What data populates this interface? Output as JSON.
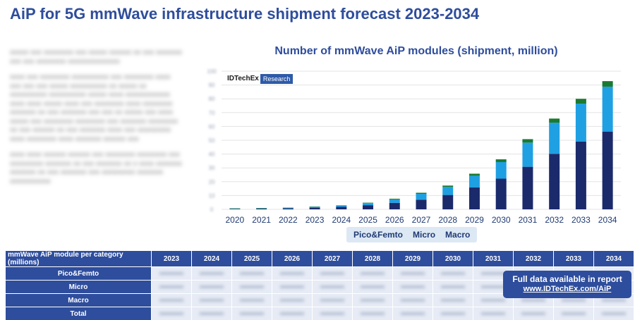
{
  "page": {
    "title": "AiP for 5G mmWave infrastructure shipment forecast 2023-2034"
  },
  "logo": {
    "brand": "IDTechEx",
    "tag": "Research"
  },
  "chart_data": {
    "type": "bar",
    "stacked": true,
    "title": "Number of mmWave AiP modules (shipment, million)",
    "categories": [
      "2020",
      "2021",
      "2022",
      "2023",
      "2024",
      "2025",
      "2026",
      "2027",
      "2028",
      "2029",
      "2030",
      "2031",
      "2032",
      "2033",
      "2034"
    ],
    "ylim": [
      0,
      100
    ],
    "y_ticks": [
      0,
      10,
      20,
      30,
      40,
      50,
      60,
      70,
      80,
      90,
      100
    ],
    "grid": true,
    "legend_position": "bottom",
    "series": [
      {
        "name": "Macro",
        "color": "#1b2a6b",
        "values": [
          0.3,
          0.5,
          0.7,
          1.2,
          1.8,
          3.0,
          4.7,
          7.0,
          10.4,
          15.8,
          22.2,
          30.8,
          40.2,
          49.0,
          56.3
        ]
      },
      {
        "name": "Micro",
        "color": "#1fa0e3",
        "values": [
          0.3,
          0.3,
          0.4,
          0.6,
          0.9,
          1.5,
          2.5,
          4.2,
          5.8,
          8.5,
          12.0,
          17.5,
          22.5,
          27.5,
          32.5
        ]
      },
      {
        "name": "Pico&Femto",
        "color": "#1a7a32",
        "values": [
          0.1,
          0.1,
          0.1,
          0.2,
          0.2,
          0.3,
          0.5,
          0.8,
          1.0,
          1.5,
          2.0,
          2.5,
          3.0,
          3.5,
          4.0
        ]
      }
    ]
  },
  "legend": {
    "items": [
      "Pico&Femto",
      "Micro",
      "Macro"
    ]
  },
  "table": {
    "header_label": "mmWave AiP module per category (millions)",
    "years": [
      "2023",
      "2024",
      "2025",
      "2026",
      "2027",
      "2028",
      "2029",
      "2030",
      "2031",
      "2032",
      "2033",
      "2034"
    ],
    "rows": [
      "Pico&Femto",
      "Micro",
      "Macro",
      "Total"
    ]
  },
  "promo": {
    "line1": "Full data available in report",
    "link": "www.IDTechEx.com/AiP"
  },
  "colors": {
    "accent": "#2e4d9c"
  }
}
